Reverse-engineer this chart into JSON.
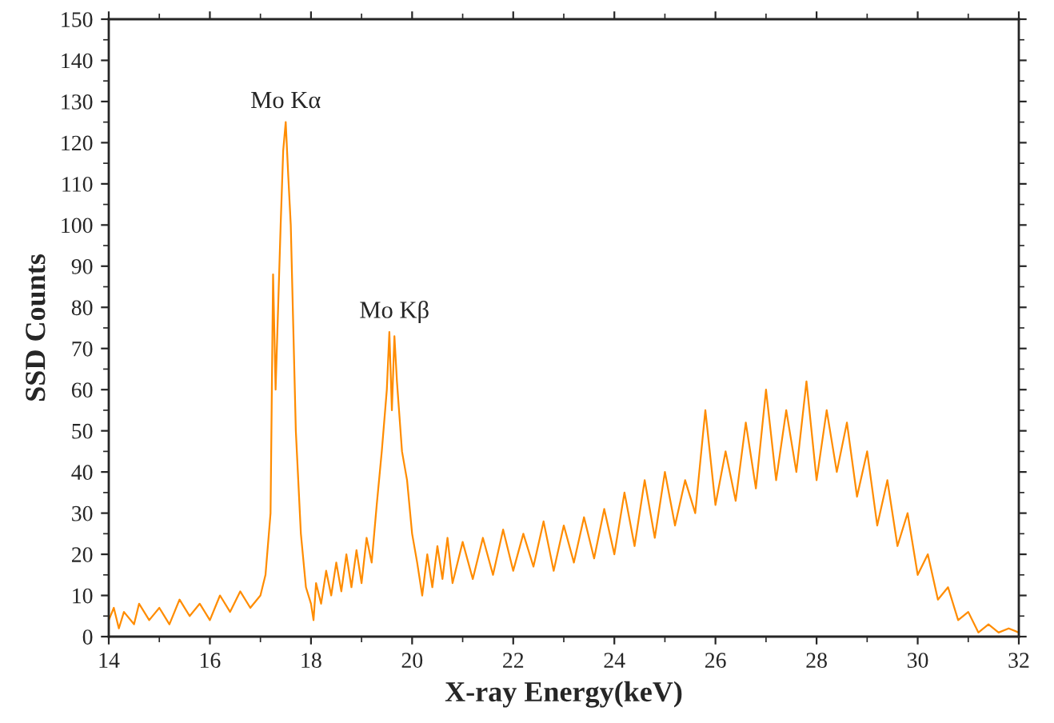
{
  "chart_data": {
    "type": "line",
    "xlabel": "X-ray Energy(keV)",
    "ylabel": "SSD Counts",
    "xlim": [
      14,
      32
    ],
    "xticks": [
      14,
      16,
      18,
      20,
      22,
      24,
      26,
      28,
      30,
      32
    ],
    "ylim": [
      0,
      150
    ],
    "yticks": [
      0,
      10,
      20,
      30,
      40,
      50,
      60,
      70,
      80,
      90,
      100,
      110,
      120,
      130,
      140,
      150
    ],
    "grid": false,
    "marker": "none",
    "line_style": "solid",
    "annotations": [
      {
        "text": "Mo Kα",
        "x": 17.5,
        "y": 125
      },
      {
        "text": "Mo Kβ",
        "x": 19.65,
        "y": 74
      }
    ],
    "series": [
      {
        "color": "#ff8c00",
        "x": [
          14.0,
          14.1,
          14.2,
          14.3,
          14.5,
          14.6,
          14.8,
          15.0,
          15.2,
          15.4,
          15.6,
          15.8,
          16.0,
          16.2,
          16.4,
          16.6,
          16.8,
          17.0,
          17.1,
          17.2,
          17.25,
          17.3,
          17.4,
          17.45,
          17.5,
          17.55,
          17.6,
          17.65,
          17.7,
          17.8,
          17.9,
          18.0,
          18.05,
          18.1,
          18.2,
          18.3,
          18.4,
          18.5,
          18.6,
          18.7,
          18.8,
          18.9,
          19.0,
          19.1,
          19.2,
          19.3,
          19.4,
          19.5,
          19.55,
          19.6,
          19.65,
          19.7,
          19.8,
          19.9,
          20.0,
          20.1,
          20.2,
          20.3,
          20.4,
          20.5,
          20.6,
          20.7,
          20.8,
          21.0,
          21.2,
          21.4,
          21.6,
          21.8,
          22.0,
          22.2,
          22.4,
          22.6,
          22.8,
          23.0,
          23.2,
          23.4,
          23.6,
          23.8,
          24.0,
          24.2,
          24.4,
          24.6,
          24.8,
          25.0,
          25.2,
          25.4,
          25.6,
          25.8,
          26.0,
          26.2,
          26.4,
          26.6,
          26.8,
          27.0,
          27.2,
          27.4,
          27.6,
          27.8,
          28.0,
          28.2,
          28.4,
          28.6,
          28.8,
          29.0,
          29.2,
          29.4,
          29.6,
          29.8,
          30.0,
          30.2,
          30.4,
          30.6,
          30.8,
          31.0,
          31.2,
          31.4,
          31.6,
          31.8,
          32.0
        ],
        "values": [
          4,
          7,
          2,
          6,
          3,
          8,
          4,
          7,
          3,
          9,
          5,
          8,
          4,
          10,
          6,
          11,
          7,
          10,
          15,
          30,
          88,
          60,
          100,
          118,
          125,
          112,
          100,
          75,
          50,
          25,
          12,
          8,
          4,
          13,
          8,
          16,
          10,
          18,
          11,
          20,
          12,
          21,
          13,
          24,
          18,
          32,
          45,
          60,
          74,
          55,
          73,
          62,
          45,
          38,
          25,
          18,
          10,
          20,
          12,
          22,
          14,
          24,
          13,
          23,
          14,
          24,
          15,
          26,
          16,
          25,
          17,
          28,
          16,
          27,
          18,
          29,
          19,
          31,
          20,
          35,
          22,
          38,
          24,
          40,
          27,
          38,
          30,
          55,
          32,
          45,
          33,
          52,
          36,
          60,
          38,
          55,
          40,
          62,
          38,
          55,
          40,
          52,
          34,
          45,
          27,
          38,
          22,
          30,
          15,
          20,
          9,
          12,
          4,
          6,
          1,
          3,
          1,
          2,
          1
        ]
      }
    ]
  }
}
